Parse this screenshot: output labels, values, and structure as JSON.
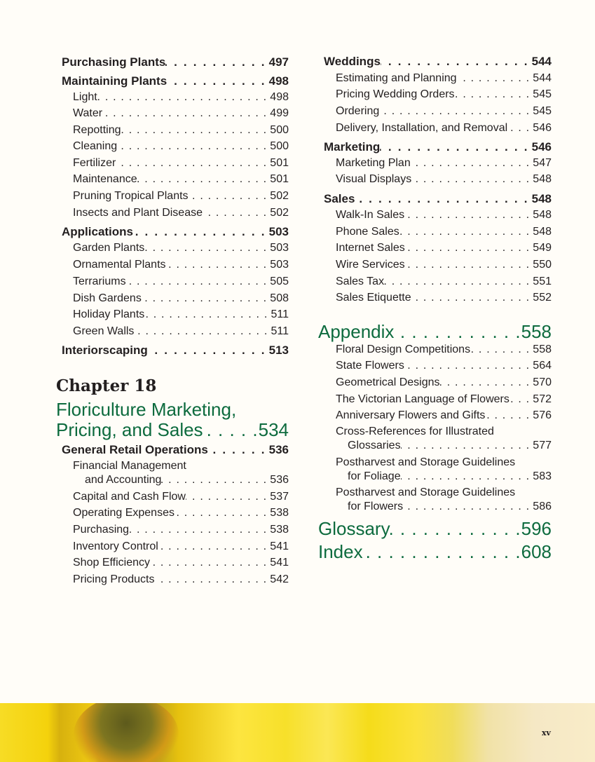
{
  "left_column": {
    "entries_before": [
      {
        "level": "h",
        "label": "Purchasing Plants",
        "page": "497"
      },
      {
        "level": "h",
        "label": "Maintaining Plants",
        "page": "498"
      },
      {
        "level": "s",
        "label": "Light",
        "page": "498"
      },
      {
        "level": "s",
        "label": "Water",
        "page": "499"
      },
      {
        "level": "s",
        "label": "Repotting",
        "page": "500"
      },
      {
        "level": "s",
        "label": "Cleaning",
        "page": "500"
      },
      {
        "level": "s",
        "label": "Fertilizer",
        "page": "501"
      },
      {
        "level": "s",
        "label": "Maintenance",
        "page": "501"
      },
      {
        "level": "s",
        "label": "Pruning Tropical Plants",
        "page": "502"
      },
      {
        "level": "s",
        "label": "Insects and Plant Disease",
        "page": "502"
      },
      {
        "level": "h",
        "label": "Applications",
        "page": "503"
      },
      {
        "level": "s",
        "label": "Garden Plants",
        "page": "503"
      },
      {
        "level": "s",
        "label": "Ornamental Plants",
        "page": "503"
      },
      {
        "level": "s",
        "label": "Terrariums",
        "page": "505"
      },
      {
        "level": "s",
        "label": "Dish Gardens",
        "page": "508"
      },
      {
        "level": "s",
        "label": "Holiday Plants",
        "page": "511"
      },
      {
        "level": "s",
        "label": "Green Walls",
        "page": "511"
      },
      {
        "level": "h",
        "label": "Interiorscaping",
        "page": "513"
      }
    ],
    "chapter": {
      "label": "Chapter 18",
      "title_line1": "Floriculture Marketing,",
      "title_line2": "Pricing, and Sales",
      "page": "534"
    },
    "entries_after": [
      {
        "level": "h",
        "label": "General Retail Operations",
        "page": "536"
      },
      {
        "level": "s",
        "label_line1": "Financial Management",
        "label": "and Accounting",
        "page": "536"
      },
      {
        "level": "s",
        "label": "Capital and Cash Flow",
        "page": "537"
      },
      {
        "level": "s",
        "label": "Operating Expenses",
        "page": "538"
      },
      {
        "level": "s",
        "label": "Purchasing",
        "page": "538"
      },
      {
        "level": "s",
        "label": "Inventory Control",
        "page": "541"
      },
      {
        "level": "s",
        "label": "Shop Efficiency",
        "page": "541"
      },
      {
        "level": "s",
        "label": "Pricing Products",
        "page": "542"
      }
    ]
  },
  "right_column": {
    "entries": [
      {
        "level": "h",
        "label": "Weddings",
        "page": "544"
      },
      {
        "level": "s",
        "label": "Estimating and Planning",
        "page": "544"
      },
      {
        "level": "s",
        "label": "Pricing Wedding Orders",
        "page": "545"
      },
      {
        "level": "s",
        "label": "Ordering",
        "page": "545"
      },
      {
        "level": "s",
        "label": "Delivery, Installation, and Removal",
        "page": "546"
      },
      {
        "level": "h",
        "label": "Marketing",
        "page": "546"
      },
      {
        "level": "s",
        "label": "Marketing Plan",
        "page": "547"
      },
      {
        "level": "s",
        "label": "Visual Displays",
        "page": "548"
      },
      {
        "level": "h",
        "label": "Sales",
        "page": "548"
      },
      {
        "level": "s",
        "label": "Walk-In Sales",
        "page": "548"
      },
      {
        "level": "s",
        "label": "Phone Sales",
        "page": "548"
      },
      {
        "level": "s",
        "label": "Internet Sales",
        "page": "549"
      },
      {
        "level": "s",
        "label": "Wire Services",
        "page": "550"
      },
      {
        "level": "s",
        "label": "Sales Tax",
        "page": "551"
      },
      {
        "level": "s",
        "label": "Sales Etiquette",
        "page": "552"
      },
      {
        "level": "big",
        "label": "Appendix",
        "page": "558"
      },
      {
        "level": "s",
        "label": "Floral Design Competitions",
        "page": "558"
      },
      {
        "level": "s",
        "label": "State Flowers",
        "page": "564"
      },
      {
        "level": "s",
        "label": "Geometrical Designs",
        "page": "570"
      },
      {
        "level": "s",
        "label": "The Victorian Language of Flowers",
        "page": "572"
      },
      {
        "level": "s",
        "label": "Anniversary Flowers and Gifts",
        "page": "576"
      },
      {
        "level": "s",
        "label_line1": "Cross-References for Illustrated",
        "label": "Glossaries",
        "page": "577"
      },
      {
        "level": "s",
        "label_line1": "Postharvest and Storage Guidelines",
        "label": "for Foliage",
        "page": "583"
      },
      {
        "level": "s",
        "label_line1": "Postharvest and Storage Guidelines",
        "label": "for Flowers",
        "page": "586"
      },
      {
        "level": "big",
        "label": "Glossary",
        "page": "596"
      },
      {
        "level": "big",
        "label": "Index",
        "page": "608"
      }
    ]
  },
  "footer": {
    "page_number": "xv",
    "image": "yellow-gerbera-daisy-photo"
  },
  "colors": {
    "heading_green": "#0d6b3e",
    "text": "#231f20",
    "background": "#fffdf8"
  }
}
